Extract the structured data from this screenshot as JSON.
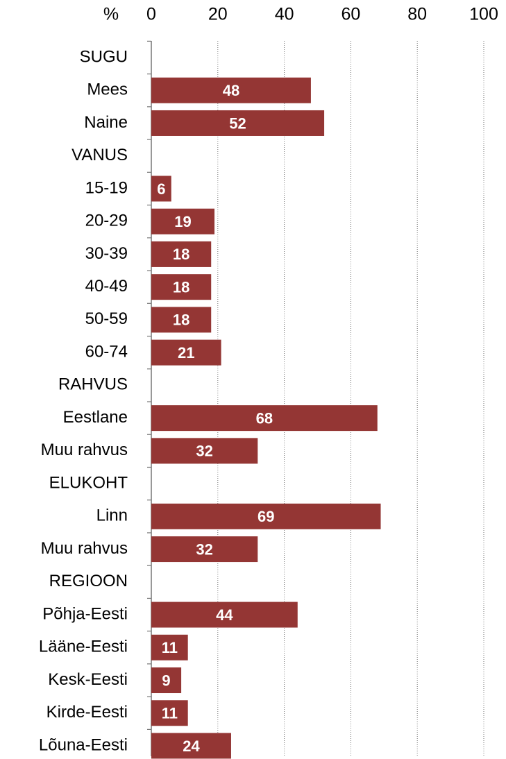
{
  "chart_data": {
    "type": "bar",
    "orientation": "horizontal",
    "x_label": "%",
    "categories": [
      "SUGU",
      "Mees",
      "Naine",
      "VANUS",
      "15-19",
      "20-29",
      "30-39",
      "40-49",
      "50-59",
      "60-74",
      "RAHVUS",
      "Eestlane",
      "Muu rahvus",
      "ELUKOHT",
      "Linn",
      "Muu rahvus",
      "REGIOON",
      "Põhja-Eesti",
      "Lääne-Eesti",
      "Kesk-Eesti",
      "Kirde-Eesti",
      "Lõuna-Eesti"
    ],
    "values": [
      null,
      48,
      52,
      null,
      6,
      19,
      18,
      18,
      18,
      21,
      null,
      68,
      32,
      null,
      69,
      32,
      null,
      44,
      11,
      9,
      11,
      24
    ],
    "color": "#943634",
    "xlim": [
      0,
      100
    ],
    "xticks": [
      0,
      20,
      40,
      60,
      80,
      100
    ],
    "grid": true
  }
}
